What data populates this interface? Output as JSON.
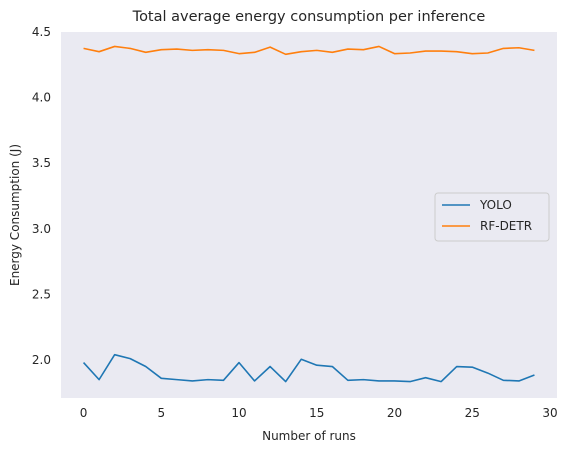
{
  "chart_data": {
    "type": "line",
    "title": "Total average energy consumption per inference",
    "xlabel": "Number of runs",
    "ylabel": "Energy Consumption (J)",
    "xlim": [
      -1.45,
      30.45
    ],
    "ylim": [
      1.71,
      4.5
    ],
    "xticks": [
      0,
      5,
      10,
      15,
      20,
      25,
      30
    ],
    "xtick_labels": [
      "0",
      "5",
      "10",
      "15",
      "20",
      "25",
      "30"
    ],
    "yticks": [
      2.0,
      2.5,
      3.0,
      3.5,
      4.0,
      4.5
    ],
    "ytick_labels": [
      "2.0",
      "2.5",
      "3.0",
      "3.5",
      "4.0",
      "4.5"
    ],
    "grid": false,
    "legend_position": "center-right",
    "background": "#eaeaf2",
    "x": [
      0,
      1,
      2,
      3,
      4,
      5,
      6,
      7,
      8,
      9,
      10,
      11,
      12,
      13,
      14,
      15,
      16,
      17,
      18,
      19,
      20,
      21,
      22,
      23,
      24,
      25,
      26,
      27,
      28,
      29
    ],
    "series": [
      {
        "name": "YOLO",
        "color": "#1f77b4",
        "values": [
          1.98,
          1.85,
          2.04,
          2.01,
          1.95,
          1.86,
          1.85,
          1.84,
          1.85,
          1.845,
          1.98,
          1.84,
          1.95,
          1.835,
          2.005,
          1.96,
          1.95,
          1.845,
          1.85,
          1.84,
          1.84,
          1.835,
          1.865,
          1.835,
          1.95,
          1.945,
          1.9,
          1.845,
          1.84,
          1.885
        ]
      },
      {
        "name": "RF-DETR",
        "color": "#ff7f0e",
        "values": [
          4.375,
          4.35,
          4.39,
          4.375,
          4.345,
          4.365,
          4.37,
          4.36,
          4.365,
          4.36,
          4.335,
          4.345,
          4.385,
          4.33,
          4.35,
          4.36,
          4.345,
          4.37,
          4.365,
          4.39,
          4.335,
          4.34,
          4.355,
          4.355,
          4.35,
          4.335,
          4.34,
          4.375,
          4.38,
          4.36
        ]
      }
    ]
  }
}
